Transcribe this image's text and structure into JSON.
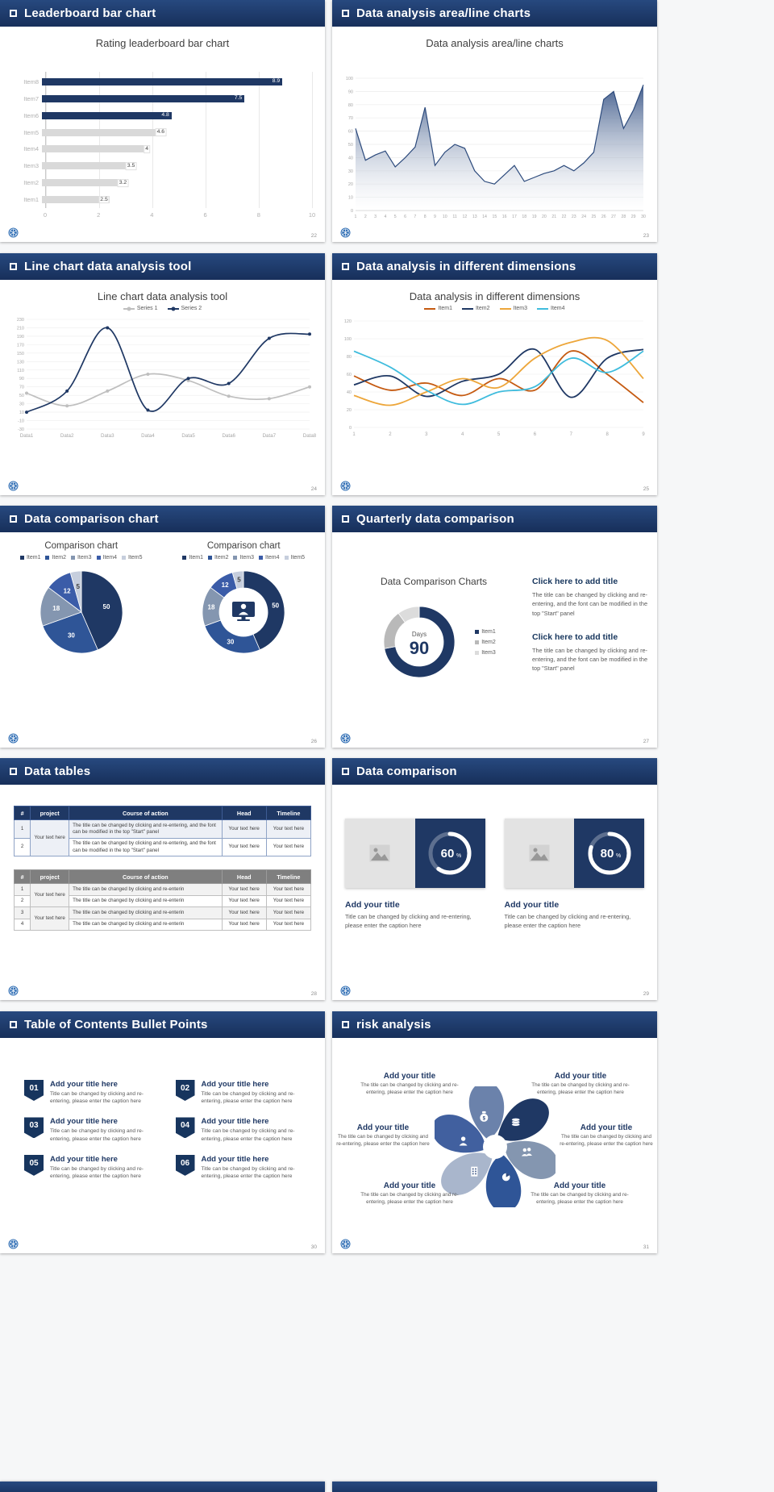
{
  "app": {
    "type": "presentation-template-preview",
    "background": "#f6f7f8"
  },
  "theme": {
    "navy": "#1f3864",
    "header_top": "#27497f",
    "header_bottom": "#172f5a",
    "body_text": "#595959",
    "bar_gray": "#d9d9d9"
  },
  "slides": [
    {
      "header": "Leaderboard bar chart",
      "page": "22"
    },
    {
      "header": "Data analysis area/line charts",
      "page": "23"
    },
    {
      "header": "Line chart data analysis tool",
      "page": "24"
    },
    {
      "header": "Data analysis in different dimensions",
      "page": "25"
    },
    {
      "header": "Data comparison chart",
      "page": "26"
    },
    {
      "header": "Quarterly data comparison",
      "page": "27",
      "blocks": [
        {
          "title": "Click here to add title",
          "body": "The title can be changed by clicking and re-entering, and the font can be modified in the top \"Start\" panel"
        },
        {
          "title": "Click here to add title",
          "body": "The title can be changed by clicking and re-entering, and the font can be modified in the top \"Start\" panel"
        }
      ]
    },
    {
      "header": "Data tables",
      "page": "28",
      "tables": [
        {
          "style": "navy",
          "col_widths": [
            "5.5%",
            "13%",
            "51.5%",
            "15%",
            "15%"
          ],
          "header": [
            "#",
            "project",
            "Course of action",
            "Head",
            "Timeline"
          ],
          "rows": [
            [
              {
                "text": "1"
              },
              {
                "text": "Your text here",
                "rowspan": 2
              },
              {
                "text": "The title can be changed by clicking and re-entering, and the font can be modified in the top \"Start\" panel",
                "align": "left"
              },
              {
                "text": "Your text here"
              },
              {
                "text": "Your text here"
              }
            ],
            [
              {
                "text": "2"
              },
              {
                "text": "The title can be changed by clicking and re-entering, and the font can be modified in the top \"Start\" panel",
                "align": "left"
              },
              {
                "text": "Your text here"
              },
              {
                "text": "Your text here"
              }
            ]
          ]
        },
        {
          "style": "gray",
          "col_widths": [
            "5.5%",
            "13%",
            "51.5%",
            "15%",
            "15%"
          ],
          "header": [
            "#",
            "project",
            "Course of action",
            "Head",
            "Timeline"
          ],
          "rows": [
            [
              {
                "text": "1"
              },
              {
                "text": "Your text here",
                "rowspan": 2
              },
              {
                "text": "The title can be changed by clicking and re-enterin",
                "align": "left"
              },
              {
                "text": "Your text here"
              },
              {
                "text": "Your text here"
              }
            ],
            [
              {
                "text": "2"
              },
              {
                "text": "The title can be changed by clicking and re-enterin",
                "align": "left"
              },
              {
                "text": "Your text here"
              },
              {
                "text": "Your text here"
              }
            ],
            [
              {
                "text": "3"
              },
              {
                "text": "Your text here",
                "rowspan": 2
              },
              {
                "text": "The title can be changed by clicking and re-enterin",
                "align": "left"
              },
              {
                "text": "Your text here"
              },
              {
                "text": "Your text here"
              }
            ],
            [
              {
                "text": "4"
              },
              {
                "text": "The title can be changed by clicking and re-enterin",
                "align": "left"
              },
              {
                "text": "Your text here"
              },
              {
                "text": "Your text here"
              }
            ]
          ]
        }
      ]
    },
    {
      "header": "Data comparison",
      "page": "29",
      "cards": [
        {
          "title": "Add your title",
          "caption": "Title can be changed by clicking and re-entering, please enter the caption here"
        },
        {
          "title": "Add your title",
          "caption": "Title can be changed by clicking and re-entering, please enter the caption here"
        }
      ]
    },
    {
      "header": "Table of Contents Bullet Points",
      "page": "30",
      "items": [
        {
          "num": "01",
          "title": "Add your title here",
          "caption": "Title can be changed by clicking and re-entering, please enter the caption here"
        },
        {
          "num": "02",
          "title": "Add your title here",
          "caption": "Title can be changed by clicking and re-entering, please enter the caption here"
        },
        {
          "num": "03",
          "title": "Add your title here",
          "caption": "Title can be changed by clicking and re-entering, please enter the caption here"
        },
        {
          "num": "04",
          "title": "Add your title here",
          "caption": "Title can be changed by clicking and re-entering, please enter the caption here"
        },
        {
          "num": "05",
          "title": "Add your title here",
          "caption": "Title can be changed by clicking and re-entering, please enter the caption here"
        },
        {
          "num": "06",
          "title": "Add your title here",
          "caption": "Title can be changed by clicking and re-entering, please enter the caption here"
        }
      ]
    },
    {
      "header": "risk analysis",
      "page": "31",
      "diagram_icons": [
        "coins",
        "users",
        "pie-chart",
        "building",
        "user",
        "money-bag"
      ],
      "items": [
        {
          "title": "Add your title",
          "caption": "The title can be changed by clicking and re-entering, please enter the caption here"
        },
        {
          "title": "Add your title",
          "caption": "The title can be changed by clicking and re-entering, please enter the caption here"
        },
        {
          "title": "Add your title",
          "caption": "The title can be changed by clicking and re-entering, please enter the caption here"
        },
        {
          "title": "Add your title",
          "caption": "The title can be changed by clicking and re-entering, please enter the caption here"
        },
        {
          "title": "Add your title",
          "caption": "The title can be changed by clicking and re-entering, please enter the caption here"
        },
        {
          "title": "Add your title",
          "caption": "The title can be changed by clicking and re-entering, please enter the caption here"
        }
      ]
    }
  ],
  "chart_data": [
    {
      "slide": "Leaderboard bar chart",
      "type": "bar",
      "orientation": "horizontal",
      "title": "Rating leaderboard bar chart",
      "categories": [
        "Item1",
        "Item2",
        "Item3",
        "Item4",
        "Item5",
        "Item6",
        "Item7",
        "Item8"
      ],
      "values": [
        2.5,
        3.2,
        3.5,
        4,
        4.6,
        4.8,
        7.5,
        8.9
      ],
      "highlight": [
        false,
        false,
        false,
        false,
        false,
        true,
        true,
        true
      ],
      "bar_color": "#d9d9d9",
      "highlight_color": "#1f3864",
      "xlim": [
        0,
        10
      ],
      "xticks": [
        0,
        2,
        4,
        6,
        8,
        10
      ]
    },
    {
      "slide": "Data analysis area/line charts",
      "type": "area",
      "title": "Data analysis area/line charts",
      "x": [
        1,
        2,
        3,
        4,
        5,
        6,
        7,
        8,
        9,
        10,
        11,
        12,
        13,
        14,
        15,
        16,
        17,
        18,
        19,
        20,
        21,
        22,
        23,
        24,
        25,
        26,
        27,
        28,
        29,
        30
      ],
      "values": [
        62,
        38,
        42,
        45,
        33,
        40,
        48,
        78,
        34,
        44,
        50,
        47,
        30,
        22,
        20,
        27,
        34,
        22,
        25,
        28,
        30,
        34,
        30,
        36,
        44,
        84,
        90,
        62,
        76,
        95
      ],
      "ylim": [
        0,
        100
      ],
      "ytick_step": 10,
      "line_color": "#2c4a7c"
    },
    {
      "slide": "Line chart data analysis tool",
      "type": "line",
      "markers": true,
      "title": "Line chart data analysis tool",
      "categories": [
        "Data1",
        "Data2",
        "Data3",
        "Data4",
        "Data5",
        "Data6",
        "Data7",
        "Data8"
      ],
      "ylim": [
        -30,
        230
      ],
      "ytick_step": 20,
      "series": [
        {
          "name": "Series 1",
          "color": "#bfbfbf",
          "values": [
            55,
            25,
            60,
            100,
            85,
            48,
            42,
            70
          ]
        },
        {
          "name": "Series 2",
          "color": "#1f3864",
          "values": [
            10,
            60,
            210,
            15,
            90,
            78,
            185,
            195
          ]
        }
      ]
    },
    {
      "slide": "Data analysis in different dimensions",
      "type": "line",
      "markers": false,
      "title": "Data analysis in different dimensions",
      "categories": [
        1,
        2,
        3,
        4,
        5,
        6,
        7,
        8,
        9
      ],
      "ylim": [
        0,
        120
      ],
      "ytick_step": 20,
      "series": [
        {
          "name": "Item1",
          "color": "#c55a11",
          "values": [
            58,
            42,
            50,
            36,
            55,
            42,
            86,
            60,
            28
          ]
        },
        {
          "name": "Item2",
          "color": "#1f3864",
          "values": [
            48,
            58,
            35,
            52,
            60,
            88,
            34,
            78,
            88
          ]
        },
        {
          "name": "Item3",
          "color": "#eda63a",
          "values": [
            36,
            25,
            40,
            55,
            45,
            78,
            96,
            98,
            55
          ]
        },
        {
          "name": "Item4",
          "color": "#3fbcdd",
          "values": [
            86,
            68,
            42,
            26,
            40,
            46,
            78,
            62,
            86
          ]
        }
      ]
    },
    {
      "slide": "Data comparison chart (left)",
      "type": "pie",
      "title": "Comparison chart",
      "labels": [
        "Item1",
        "Item2",
        "Item3",
        "Item4",
        "Item5"
      ],
      "values": [
        50,
        30,
        18,
        12,
        5
      ],
      "colors": [
        "#1f3864",
        "#2f5597",
        "#8496b0",
        "#3b5ca8",
        "#c6cedd"
      ]
    },
    {
      "slide": "Data comparison chart (right)",
      "type": "donut",
      "title": "Comparison chart",
      "labels": [
        "Item1",
        "Item2",
        "Item3",
        "Item4",
        "Item5"
      ],
      "values": [
        50,
        30,
        18,
        12,
        5
      ],
      "colors": [
        "#1f3864",
        "#2f5597",
        "#8496b0",
        "#3b5ca8",
        "#c6cedd"
      ],
      "center_icon": "presenter"
    },
    {
      "slide": "Quarterly data comparison",
      "type": "donut",
      "title": "Data Comparison Charts",
      "labels": [
        "Item1",
        "Item2",
        "Item3"
      ],
      "values": [
        72,
        18,
        10
      ],
      "colors": [
        "#1f3864",
        "#b9b9b9",
        "#dcdcdc"
      ],
      "center_label": "Days",
      "center_value": "90"
    },
    {
      "slide": "Data comparison card 1",
      "type": "progress-donut",
      "value": 60,
      "unit": "%"
    },
    {
      "slide": "Data comparison card 2",
      "type": "progress-donut",
      "value": 80,
      "unit": "%"
    }
  ]
}
